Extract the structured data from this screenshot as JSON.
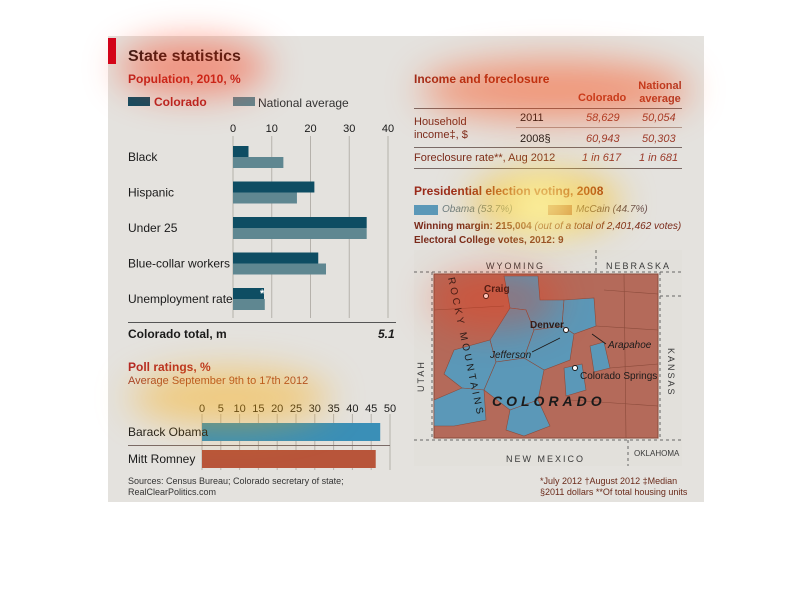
{
  "header": {
    "title": "State statistics"
  },
  "population": {
    "title": "Population, 2010, %",
    "legend": [
      {
        "label": "Colorado",
        "color": "#0e4d63"
      },
      {
        "label": "National average",
        "color": "#5f8791"
      }
    ],
    "total_label": "Colorado total, m",
    "total_value": "5.1",
    "asterisk": "*"
  },
  "poll": {
    "title": "Poll ratings, %",
    "subtitle": "Average September 9th to 17th 2012"
  },
  "income": {
    "title": "Income and foreclosure",
    "col_colorado": "Colorado",
    "col_national": "National average",
    "row_label": "Household income‡, $",
    "rows": [
      {
        "year": "2011",
        "colorado": "58,629",
        "national": "50,054"
      },
      {
        "year": "2008§",
        "colorado": "60,943",
        "national": "50,303"
      }
    ],
    "foreclosure_label": "Foreclosure rate**, Aug 2012",
    "foreclosure_colorado": "1 in 617",
    "foreclosure_national": "1 in 681"
  },
  "presidential": {
    "title": "Presidential election voting, 2008",
    "obama": "Obama (53.7%)",
    "mccain": "McCain (44.7%)",
    "margin_label": "Winning margin: 215,004",
    "margin_note": "(out of a total of 2,401,462 votes)",
    "electoral": "Electoral College votes, 2012: 9",
    "colors": {
      "obama": "#5b98b8",
      "mccain": "#b46a5a"
    }
  },
  "map": {
    "neighbors": [
      "WYOMING",
      "NEBRASKA",
      "UTAH",
      "KANSAS",
      "NEW MEXICO",
      "OKLAHOMA"
    ],
    "mountains": "ROCKY MOUNTAINS",
    "state": "COLORADO",
    "cities": [
      "Craig",
      "Denver",
      "Jefferson",
      "Arapahoe",
      "Colorado Springs"
    ]
  },
  "footer": {
    "sources_1": "Sources: Census Bureau; Colorado secretary of state;",
    "sources_2": "RealClearPolitics.com",
    "note_1": "*July 2012   †August 2012   ‡Median",
    "note_2": "§2011 dollars   **Of total housing units"
  },
  "chart_data": [
    {
      "type": "bar",
      "title": "Population, 2010, %",
      "categories": [
        "Black",
        "Hispanic",
        "Under 25",
        "Blue-collar workers",
        "Unemployment rate"
      ],
      "series": [
        {
          "name": "Colorado",
          "values": [
            4,
            21,
            34.5,
            22,
            8
          ]
        },
        {
          "name": "National average",
          "values": [
            13,
            16.5,
            34.5,
            24,
            8.2
          ]
        }
      ],
      "xlim": [
        0,
        40
      ],
      "xticks": [
        0,
        10,
        20,
        30,
        40
      ],
      "orientation": "horizontal"
    },
    {
      "type": "bar",
      "title": "Poll ratings, %",
      "subtitle": "Average September 9th to 17th 2012",
      "categories": [
        "Barack Obama",
        "Mitt Romney"
      ],
      "values": [
        47.4,
        46.2
      ],
      "colors": [
        "#3a8fb7",
        "#b8553a"
      ],
      "xlim": [
        0,
        50
      ],
      "xticks": [
        0,
        5,
        10,
        15,
        20,
        25,
        30,
        35,
        40,
        45,
        50
      ],
      "orientation": "horizontal"
    }
  ]
}
